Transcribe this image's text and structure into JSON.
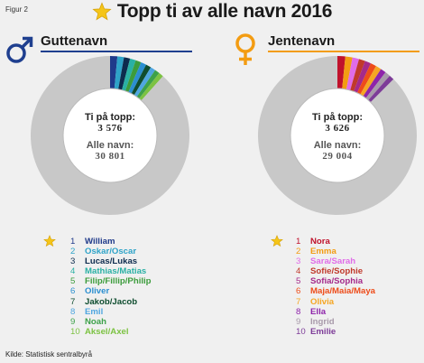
{
  "figure_label": "Figur 2",
  "title": "Topp ti av alle navn 2016",
  "source": "Kilde: Statistisk sentralbyrå",
  "colors": {
    "background": "#f0f0f0",
    "boys_accent": "#1f3f8f",
    "girls_accent": "#f39c12",
    "star": "#f5c518",
    "remainder": "#c8c8c8",
    "ring_border": "#bbbbbb"
  },
  "chart_data": [
    {
      "type": "pie",
      "title": "Guttenavn",
      "center_label_1": "Ti på topp:",
      "center_value_1": "3 576",
      "center_label_2": "Alle navn:",
      "center_value_2": "30 801",
      "total": 30801,
      "top_ten_total": 3576,
      "categories": [
        "William",
        "Oskar/Oscar",
        "Lucas/Lukas",
        "Mathias/Matias",
        "Filip/Fillip/Philip",
        "Oliver",
        "Jakob/Jacob",
        "Emil",
        "Noah",
        "Aksel/Axel"
      ],
      "ranks": [
        "1",
        "2",
        "3",
        "4",
        "5",
        "6",
        "7",
        "8",
        "9",
        "10"
      ],
      "values": [
        455,
        410,
        385,
        368,
        352,
        344,
        330,
        322,
        310,
        300
      ],
      "colors": [
        "#1f3a8a",
        "#2ea3c8",
        "#0d2b4e",
        "#2ab0a4",
        "#3c9c3c",
        "#2b8fd0",
        "#0f4d2f",
        "#4fa6e0",
        "#3da14a",
        "#7cc242"
      ],
      "rank_star_index": 0
    },
    {
      "type": "pie",
      "title": "Jentenavn",
      "center_label_1": "Ti på topp:",
      "center_value_1": "3 626",
      "center_label_2": "Alle navn:",
      "center_value_2": "29 004",
      "total": 29004,
      "top_ten_total": 3626,
      "categories": [
        "Nora",
        "Emma",
        "Sara/Sarah",
        "Sofie/Sophie",
        "Sofia/Sophia",
        "Maja/Maia/Maya",
        "Olivia",
        "Ella",
        "Ingrid",
        "Emilie"
      ],
      "ranks": [
        "1",
        "2",
        "3",
        "4",
        "5",
        "6",
        "7",
        "8",
        "9",
        "10"
      ],
      "values": [
        465,
        420,
        390,
        370,
        360,
        345,
        335,
        325,
        312,
        304
      ],
      "colors": [
        "#c0122c",
        "#f39c12",
        "#e06ce8",
        "#c0392b",
        "#a52a8a",
        "#ee4c1a",
        "#f5a623",
        "#8e24aa",
        "#a89aaa",
        "#7d3c98"
      ],
      "rank_star_index": 0
    }
  ]
}
